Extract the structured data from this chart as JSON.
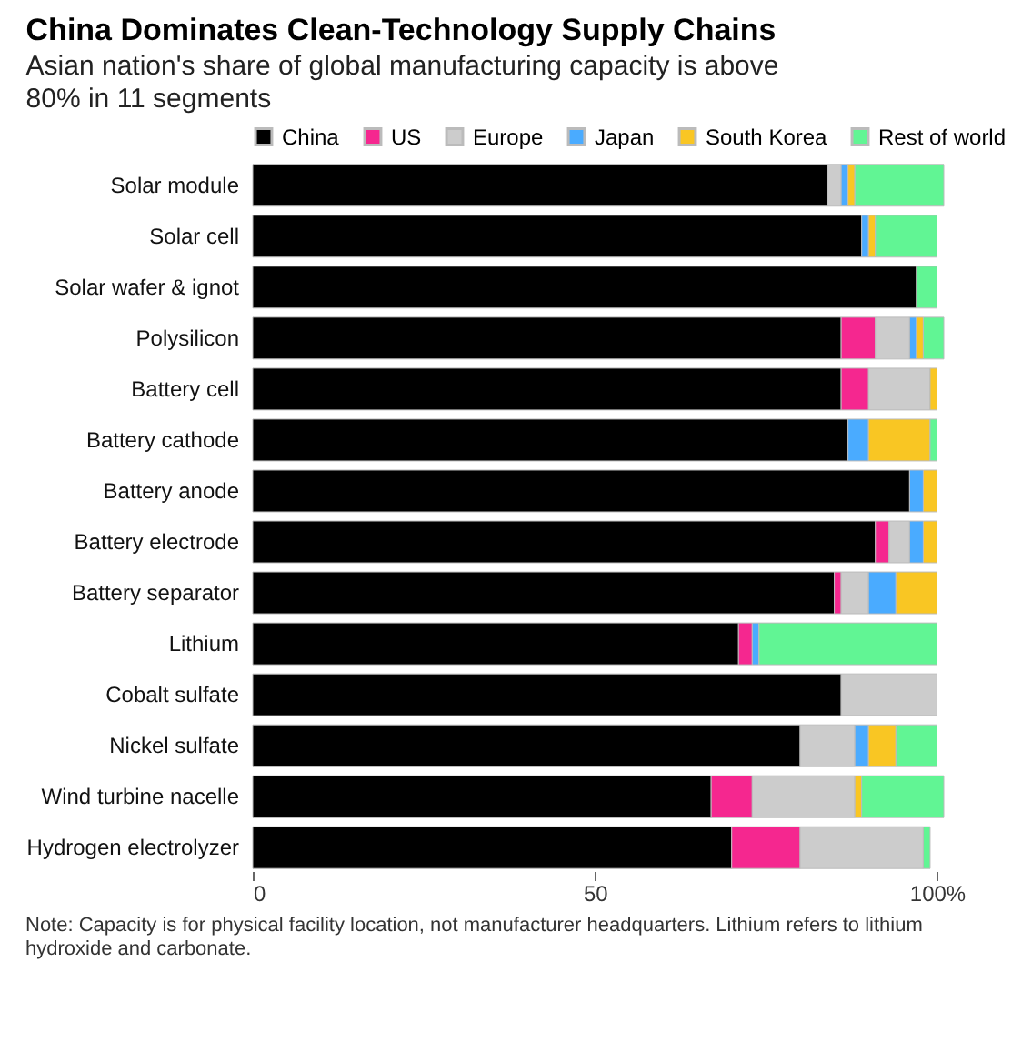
{
  "chart_data": {
    "type": "bar",
    "orientation": "horizontal",
    "stacked": true,
    "title": "China Dominates Clean-Technology Supply Chains",
    "subtitle": "Asian nation's share of global manufacturing capacity is above 80% in 11 segments",
    "categories": [
      "Solar module",
      "Solar cell",
      "Solar wafer & ignot",
      "Polysilicon",
      "Battery cell",
      "Battery cathode",
      "Battery anode",
      "Battery electrode",
      "Battery separator",
      "Lithium",
      "Cobalt sulfate",
      "Nickel sulfate",
      "Wind turbine nacelle",
      "Hydrogen electrolyzer"
    ],
    "series": [
      {
        "name": "China",
        "color": "#000000",
        "values": [
          84,
          89,
          97,
          86,
          86,
          87,
          96,
          91,
          85,
          71,
          86,
          80,
          67,
          70
        ]
      },
      {
        "name": "US",
        "color": "#f5278f",
        "values": [
          null,
          null,
          null,
          5,
          4,
          null,
          null,
          2,
          1,
          2,
          null,
          null,
          6,
          10
        ]
      },
      {
        "name": "Europe",
        "color": "#cccccc",
        "values": [
          2,
          null,
          null,
          5,
          9,
          null,
          null,
          3,
          4,
          null,
          14,
          8,
          15,
          18
        ]
      },
      {
        "name": "Japan",
        "color": "#4aabff",
        "values": [
          1,
          1,
          null,
          1,
          null,
          3,
          2,
          2,
          4,
          1,
          null,
          2,
          null,
          null
        ]
      },
      {
        "name": "South Korea",
        "color": "#f9c623",
        "values": [
          1,
          1,
          null,
          1,
          1,
          9,
          2,
          2,
          6,
          null,
          null,
          4,
          1,
          null
        ]
      },
      {
        "name": "Rest of world",
        "color": "#61f594",
        "values": [
          13,
          9,
          3,
          3,
          null,
          1,
          null,
          null,
          null,
          26,
          null,
          6,
          12,
          1
        ]
      }
    ],
    "xlim": [
      0,
      101
    ],
    "xticks": [
      0,
      50,
      {
        "value": 100,
        "label": "100%"
      }
    ],
    "legend": "top left",
    "grid": false,
    "annotations": [
      "Note: Capacity is for physical facility location, not manufacturer headquarters. Lithium refers to lithium hydroxide and carbonate."
    ]
  }
}
